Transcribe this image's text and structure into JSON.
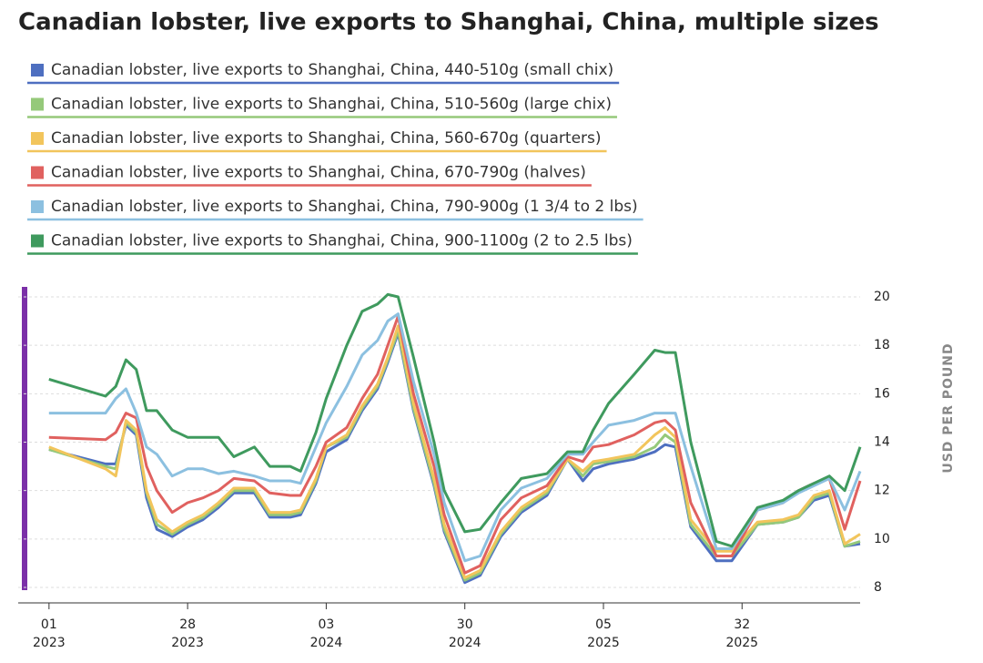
{
  "chart_data": {
    "type": "line",
    "title": "Canadian lobster, live exports to Shanghai, China, multiple sizes",
    "y_label": "USD PER POUND",
    "x": [
      0,
      11,
      13,
      15,
      17,
      19,
      21,
      24,
      27,
      30,
      33,
      36,
      40,
      43,
      47,
      49,
      52,
      54,
      58,
      61,
      64,
      66,
      68,
      71,
      75,
      77,
      81,
      84,
      88,
      92,
      97,
      101,
      104,
      106,
      109,
      114,
      118,
      120,
      122,
      125,
      130,
      133,
      138,
      143,
      146,
      149,
      152,
      155,
      158
    ],
    "xlim": [
      -6,
      158
    ],
    "xticks": [
      {
        "value": 0,
        "label": "01",
        "year": "2023"
      },
      {
        "value": 27,
        "label": "28",
        "year": "2023"
      },
      {
        "value": 54,
        "label": "03",
        "year": "2024"
      },
      {
        "value": 81,
        "label": "30",
        "year": "2024"
      },
      {
        "value": 108,
        "label": "05",
        "year": "2025"
      },
      {
        "value": 135,
        "label": "32",
        "year": "2025"
      }
    ],
    "ylim": [
      7.4,
      20.6
    ],
    "yticks": [
      8,
      10,
      12,
      14,
      16,
      18,
      20
    ],
    "grid": true,
    "series": [
      {
        "name": "Canadian lobster, live exports to Shanghai, China, 440-510g (small chix)",
        "color": "#4e6fc0",
        "values": [
          13.7,
          13.1,
          13.1,
          14.7,
          14.3,
          11.7,
          10.4,
          10.1,
          10.5,
          10.8,
          11.3,
          11.9,
          11.9,
          10.9,
          10.9,
          11.0,
          12.3,
          13.6,
          14.1,
          15.3,
          16.2,
          17.3,
          18.5,
          15.3,
          12.2,
          10.3,
          8.2,
          8.5,
          10.1,
          11.1,
          11.8,
          13.3,
          12.4,
          12.9,
          13.1,
          13.3,
          13.6,
          13.9,
          13.8,
          10.5,
          9.1,
          9.1,
          10.6,
          10.7,
          10.9,
          11.6,
          11.8,
          9.7,
          9.8
        ]
      },
      {
        "name": "Canadian lobster, live exports to Shanghai, China, 510-560g (large chix)",
        "color": "#95c97a",
        "values": [
          13.7,
          13.0,
          12.9,
          14.8,
          14.4,
          11.9,
          10.6,
          10.2,
          10.6,
          10.9,
          11.4,
          12.0,
          12.0,
          11.0,
          11.0,
          11.1,
          12.4,
          13.8,
          14.2,
          15.4,
          16.3,
          17.4,
          18.6,
          15.4,
          12.3,
          10.4,
          8.3,
          8.6,
          10.2,
          11.2,
          11.9,
          13.3,
          12.6,
          13.1,
          13.2,
          13.4,
          13.8,
          14.3,
          14.0,
          10.6,
          9.3,
          9.3,
          10.6,
          10.7,
          10.9,
          11.7,
          11.9,
          9.7,
          9.9
        ]
      },
      {
        "name": "Canadian lobster, live exports to Shanghai, China, 560-670g (quarters)",
        "color": "#f2c55c",
        "values": [
          13.8,
          12.9,
          12.6,
          14.9,
          14.5,
          12.0,
          10.8,
          10.3,
          10.7,
          11.0,
          11.5,
          12.1,
          12.1,
          11.1,
          11.1,
          11.2,
          12.5,
          13.8,
          14.3,
          15.5,
          16.4,
          17.5,
          18.8,
          15.6,
          12.5,
          10.6,
          8.4,
          8.7,
          10.3,
          11.3,
          12.0,
          13.3,
          12.8,
          13.2,
          13.3,
          13.5,
          14.3,
          14.6,
          14.2,
          10.8,
          9.5,
          9.5,
          10.7,
          10.8,
          11.0,
          11.8,
          12.0,
          9.8,
          10.2
        ]
      },
      {
        "name": "Canadian lobster, live exports to Shanghai, China, 670-790g (halves)",
        "color": "#e0615f",
        "values": [
          14.2,
          14.1,
          14.4,
          15.2,
          15.0,
          13.0,
          12.0,
          11.1,
          11.5,
          11.7,
          12.0,
          12.5,
          12.4,
          11.9,
          11.8,
          11.8,
          13.0,
          14.0,
          14.6,
          15.8,
          16.8,
          18.0,
          19.2,
          16.0,
          13.0,
          11.0,
          8.6,
          8.9,
          10.8,
          11.7,
          12.2,
          13.4,
          13.2,
          13.8,
          13.9,
          14.3,
          14.8,
          14.9,
          14.5,
          11.5,
          9.3,
          9.3,
          11.2,
          11.5,
          12.0,
          12.3,
          12.5,
          10.4,
          12.4
        ]
      },
      {
        "name": "Canadian lobster, live exports to Shanghai, China, 790-900g (1 3/4 to 2 lbs)",
        "color": "#8cc0e0",
        "values": [
          15.2,
          15.2,
          15.8,
          16.2,
          15.2,
          13.8,
          13.5,
          12.6,
          12.9,
          12.9,
          12.7,
          12.8,
          12.6,
          12.4,
          12.4,
          12.3,
          13.8,
          14.8,
          16.3,
          17.6,
          18.2,
          19.0,
          19.3,
          16.5,
          13.5,
          11.5,
          9.1,
          9.3,
          11.2,
          12.1,
          12.5,
          13.5,
          13.5,
          14.0,
          14.7,
          14.9,
          15.2,
          15.2,
          15.2,
          13.0,
          9.6,
          9.6,
          11.2,
          11.5,
          11.9,
          12.2,
          12.5,
          11.2,
          12.8
        ]
      },
      {
        "name": "Canadian lobster, live exports to Shanghai, China, 900-1100g (2 to 2.5 lbs)",
        "color": "#3f9a5e",
        "values": [
          16.6,
          15.9,
          16.3,
          17.4,
          17.0,
          15.3,
          15.3,
          14.5,
          14.2,
          14.2,
          14.2,
          13.4,
          13.8,
          13.0,
          13.0,
          12.8,
          14.4,
          15.8,
          18.0,
          19.4,
          19.7,
          20.1,
          20.0,
          17.5,
          14.0,
          12.0,
          10.3,
          10.4,
          11.5,
          12.5,
          12.7,
          13.6,
          13.6,
          14.5,
          15.6,
          16.8,
          17.8,
          17.7,
          17.7,
          14.0,
          9.9,
          9.7,
          11.3,
          11.6,
          12.0,
          12.3,
          12.6,
          12.0,
          13.8
        ]
      }
    ]
  }
}
